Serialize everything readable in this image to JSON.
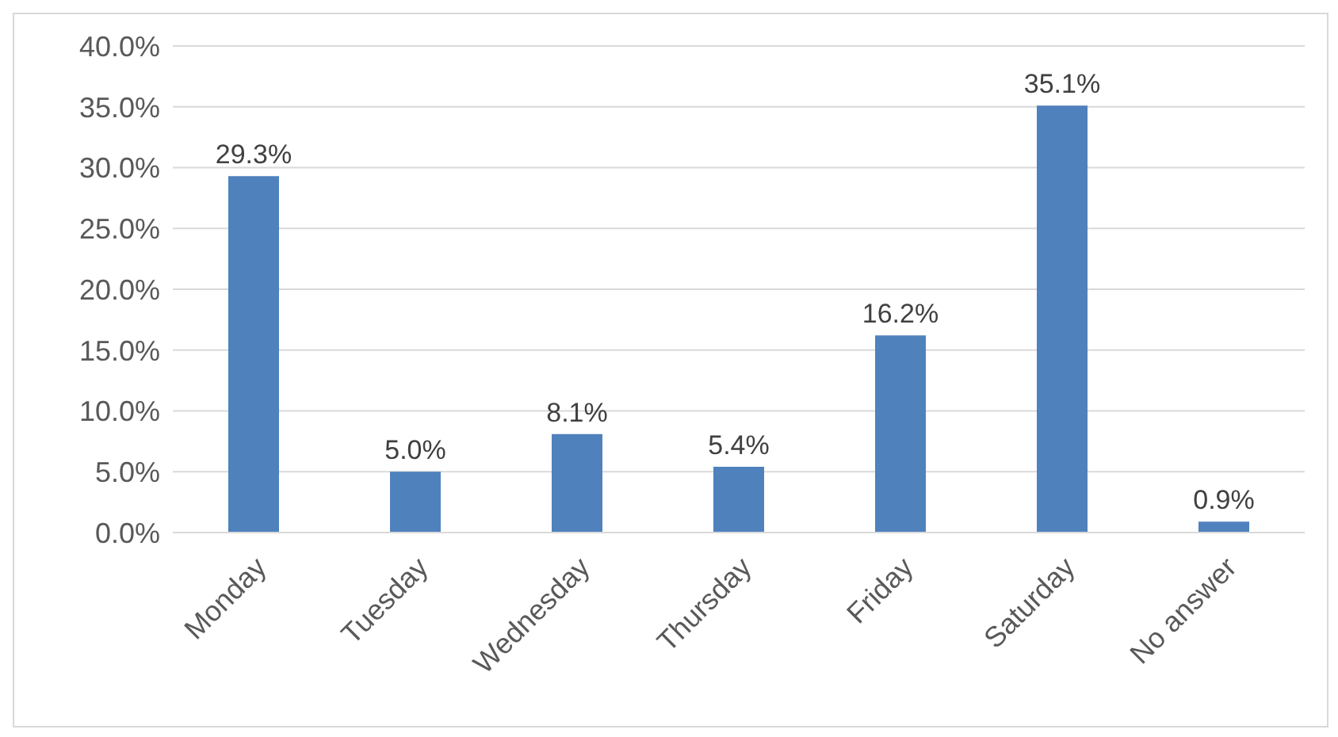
{
  "chart_data": {
    "type": "bar",
    "categories": [
      "Monday",
      "Tuesday",
      "Wednesday",
      "Thursday",
      "Friday",
      "Saturday",
      "No answer"
    ],
    "values": [
      29.3,
      5.0,
      8.1,
      5.4,
      16.2,
      35.1,
      0.9
    ],
    "value_labels": [
      "29.3%",
      "5.0%",
      "8.1%",
      "5.4%",
      "16.2%",
      "35.1%",
      "0.9%"
    ],
    "color": "#4f81bd",
    "ylim": [
      0,
      40
    ],
    "yticks": [
      {
        "value": 0,
        "label": "0.0%"
      },
      {
        "value": 5,
        "label": "5.0%"
      },
      {
        "value": 10,
        "label": "10.0%"
      },
      {
        "value": 15,
        "label": "15.0%"
      },
      {
        "value": 20,
        "label": "20.0%"
      },
      {
        "value": 25,
        "label": "25.0%"
      },
      {
        "value": 30,
        "label": "30.0%"
      },
      {
        "value": 35,
        "label": "35.0%"
      },
      {
        "value": 40,
        "label": "40.0%"
      }
    ],
    "grid": "y"
  }
}
